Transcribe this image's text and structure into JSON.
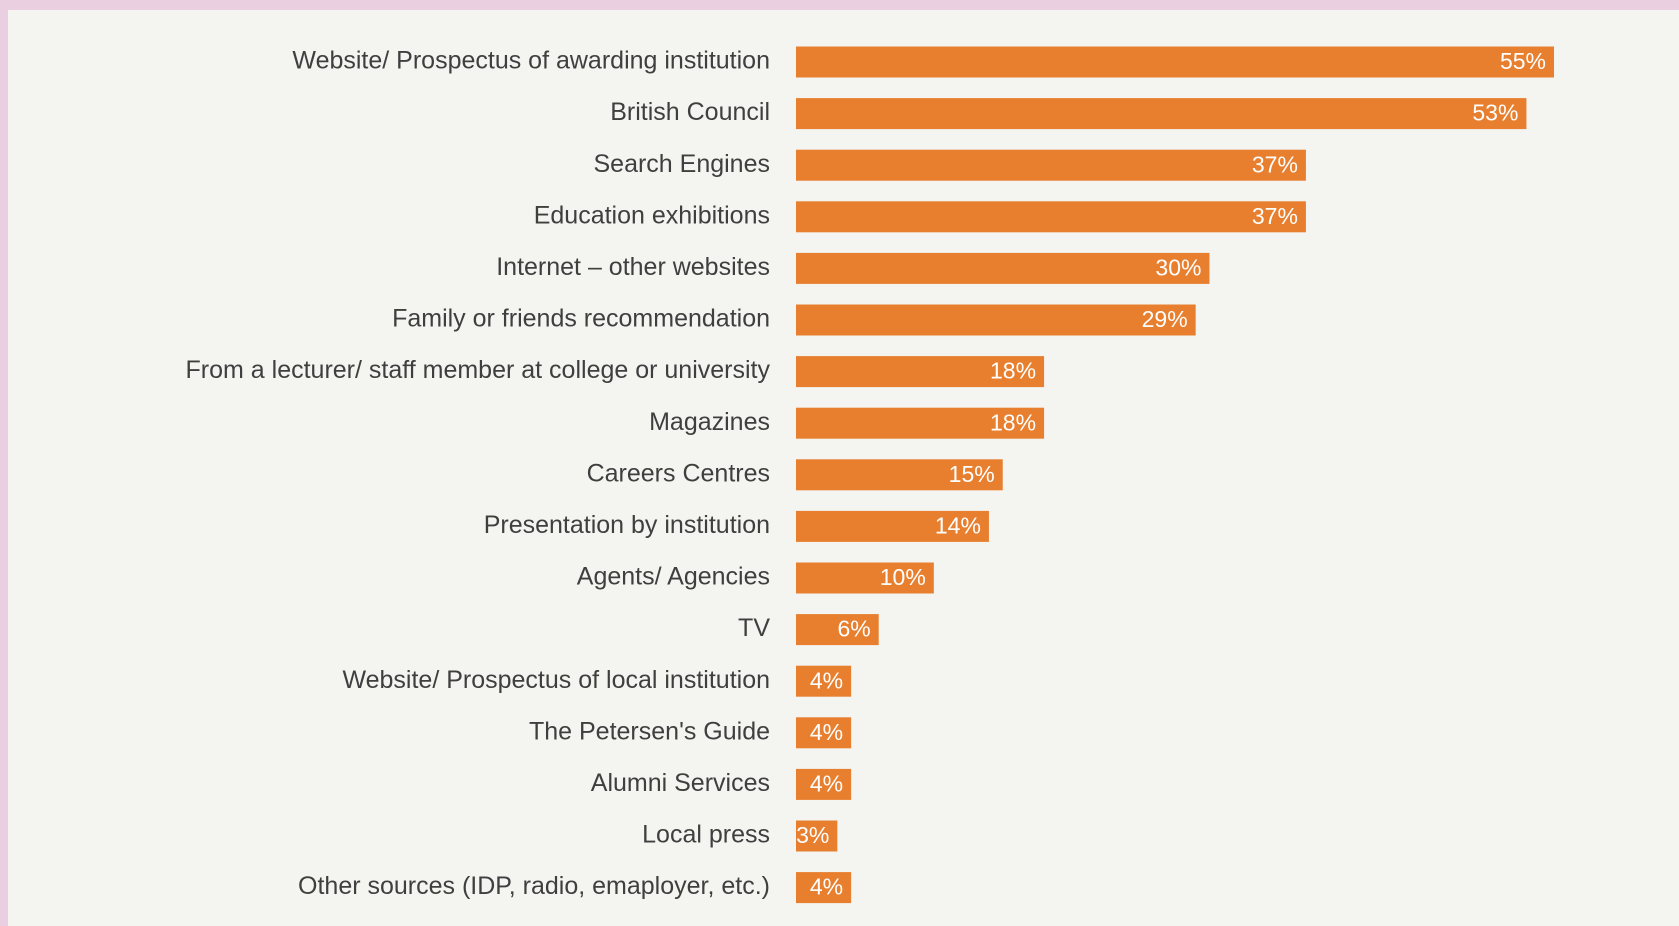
{
  "colors": {
    "bar": "#e87f2e",
    "value_inside": "#ffffff",
    "value_outside": "#3f3f3f"
  },
  "chart_data": {
    "type": "bar",
    "orientation": "horizontal",
    "categories": [
      "Website/ Prospectus of awarding institution",
      "British Council",
      "Search Engines",
      "Education exhibitions",
      "Internet – other websites",
      "Family or friends recommendation",
      "From a lecturer/ staff member at college or university",
      "Magazines",
      "Careers Centres",
      "Presentation by institution",
      "Agents/ Agencies",
      "TV",
      "Website/ Prospectus of local institution",
      "The Petersen's Guide",
      "Alumni Services",
      "Local press",
      "Other sources (IDP, radio, emaployer, etc.)"
    ],
    "values": [
      55,
      53,
      37,
      37,
      30,
      29,
      18,
      18,
      15,
      14,
      10,
      6,
      4,
      4,
      4,
      3,
      4
    ],
    "value_labels": [
      "55%",
      "53%",
      "37%",
      "37%",
      "30%",
      "29%",
      "18%",
      "18%",
      "15%",
      "14%",
      "10%",
      "6%",
      "4%",
      "4%",
      "4%",
      "3%",
      "4%"
    ],
    "unit": "%",
    "title": "",
    "xlabel": "",
    "ylabel": "",
    "xlim": [
      0,
      55
    ],
    "grid": false,
    "legend": "none"
  }
}
